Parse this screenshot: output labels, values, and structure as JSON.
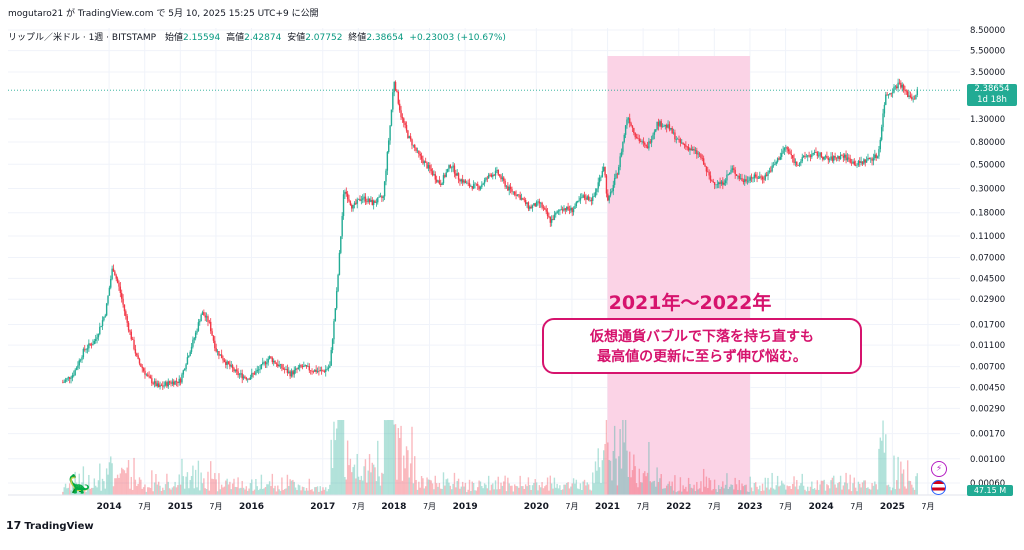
{
  "header": {
    "attribution": "mogutaro21 が TradingView.com で 5月 10, 2025 15:25 UTC+9 に公開",
    "symbol": "リップル／米ドル · 1週 · BITSTAMP",
    "open_label": "始値",
    "open": "2.15594",
    "high_label": "高値",
    "high": "2.42874",
    "low_label": "安値",
    "low": "2.07752",
    "close_label": "終値",
    "close": "2.38654",
    "change": "+0.23003 (+10.67%)"
  },
  "price_tag": {
    "price": "2.38654",
    "countdown": "1d 18h"
  },
  "volume_tag": "47.15 M",
  "logo": {
    "text": "TradingView",
    "mark": "17"
  },
  "annotation": {
    "title": "2021年〜2022年",
    "line1": "仮想通貨バブルで下落を持ち直すも",
    "line2": "最高値の更新に至らず伸び悩む。"
  },
  "colors": {
    "up": "#22ab94",
    "down": "#f23645",
    "highlight": "#fbd3e6",
    "accent": "#d6136d"
  },
  "chart_data": {
    "type": "candlestick",
    "scale": "log",
    "y_ticks": [
      "8.50000",
      "5.50000",
      "3.50000",
      "2.38654",
      "1.30000",
      "0.80000",
      "0.50000",
      "0.30000",
      "0.18000",
      "0.11000",
      "0.07000",
      "0.04500",
      "0.02900",
      "0.01700",
      "0.01100",
      "0.00700",
      "0.00450",
      "0.00290",
      "0.00170",
      "0.00100",
      "0.00060"
    ],
    "y_tick_values": [
      8.5,
      5.5,
      3.5,
      2.38654,
      1.3,
      0.8,
      0.5,
      0.3,
      0.18,
      0.11,
      0.07,
      0.045,
      0.029,
      0.017,
      0.011,
      0.007,
      0.0045,
      0.0029,
      0.0017,
      0.001,
      0.0006
    ],
    "x_ticks": [
      {
        "t": 2014.0,
        "label": "2014",
        "bold": true
      },
      {
        "t": 2014.5,
        "label": "7月",
        "bold": false
      },
      {
        "t": 2015.0,
        "label": "2015",
        "bold": true
      },
      {
        "t": 2015.5,
        "label": "7月",
        "bold": false
      },
      {
        "t": 2016.0,
        "label": "2016",
        "bold": true
      },
      {
        "t": 2017.0,
        "label": "2017",
        "bold": true
      },
      {
        "t": 2017.5,
        "label": "7月",
        "bold": false
      },
      {
        "t": 2018.0,
        "label": "2018",
        "bold": true
      },
      {
        "t": 2018.5,
        "label": "7月",
        "bold": false
      },
      {
        "t": 2019.0,
        "label": "2019",
        "bold": true
      },
      {
        "t": 2020.0,
        "label": "2020",
        "bold": true
      },
      {
        "t": 2020.5,
        "label": "7月",
        "bold": false
      },
      {
        "t": 2021.0,
        "label": "2021",
        "bold": true
      },
      {
        "t": 2021.5,
        "label": "7月",
        "bold": false
      },
      {
        "t": 2022.0,
        "label": "2022",
        "bold": true
      },
      {
        "t": 2022.5,
        "label": "7月",
        "bold": false
      },
      {
        "t": 2023.0,
        "label": "2023",
        "bold": true
      },
      {
        "t": 2023.5,
        "label": "7月",
        "bold": false
      },
      {
        "t": 2024.0,
        "label": "2024",
        "bold": true
      },
      {
        "t": 2024.5,
        "label": "7月",
        "bold": false
      },
      {
        "t": 2025.0,
        "label": "2025",
        "bold": true
      },
      {
        "t": 2025.5,
        "label": "7月",
        "bold": false
      }
    ],
    "highlight_range": [
      "2021-01",
      "2022-12"
    ],
    "price_path": [
      [
        2013.35,
        0.005
      ],
      [
        2013.5,
        0.006
      ],
      [
        2013.65,
        0.01
      ],
      [
        2013.8,
        0.012
      ],
      [
        2013.95,
        0.022
      ],
      [
        2014.05,
        0.058
      ],
      [
        2014.15,
        0.035
      ],
      [
        2014.25,
        0.018
      ],
      [
        2014.4,
        0.008
      ],
      [
        2014.55,
        0.0055
      ],
      [
        2014.7,
        0.0045
      ],
      [
        2014.85,
        0.005
      ],
      [
        2015.0,
        0.0052
      ],
      [
        2015.1,
        0.0085
      ],
      [
        2015.2,
        0.013
      ],
      [
        2015.3,
        0.022
      ],
      [
        2015.4,
        0.018
      ],
      [
        2015.5,
        0.01
      ],
      [
        2015.65,
        0.0075
      ],
      [
        2015.8,
        0.006
      ],
      [
        2015.95,
        0.0055
      ],
      [
        2016.1,
        0.0065
      ],
      [
        2016.25,
        0.0085
      ],
      [
        2016.4,
        0.007
      ],
      [
        2016.55,
        0.006
      ],
      [
        2016.7,
        0.007
      ],
      [
        2016.85,
        0.0065
      ],
      [
        2017.0,
        0.0063
      ],
      [
        2017.1,
        0.007
      ],
      [
        2017.2,
        0.035
      ],
      [
        2017.3,
        0.3
      ],
      [
        2017.42,
        0.2
      ],
      [
        2017.55,
        0.25
      ],
      [
        2017.7,
        0.22
      ],
      [
        2017.85,
        0.25
      ],
      [
        2017.95,
        1.2
      ],
      [
        2018.0,
        3.0
      ],
      [
        2018.1,
        1.4
      ],
      [
        2018.2,
        0.9
      ],
      [
        2018.35,
        0.6
      ],
      [
        2018.5,
        0.45
      ],
      [
        2018.65,
        0.33
      ],
      [
        2018.8,
        0.5
      ],
      [
        2018.9,
        0.38
      ],
      [
        2019.05,
        0.32
      ],
      [
        2019.2,
        0.31
      ],
      [
        2019.35,
        0.4
      ],
      [
        2019.45,
        0.42
      ],
      [
        2019.6,
        0.3
      ],
      [
        2019.75,
        0.26
      ],
      [
        2019.9,
        0.2
      ],
      [
        2020.05,
        0.22
      ],
      [
        2020.2,
        0.15
      ],
      [
        2020.35,
        0.2
      ],
      [
        2020.5,
        0.19
      ],
      [
        2020.65,
        0.25
      ],
      [
        2020.8,
        0.24
      ],
      [
        2020.95,
        0.5
      ],
      [
        2021.0,
        0.22
      ],
      [
        2021.15,
        0.45
      ],
      [
        2021.28,
        1.4
      ],
      [
        2021.4,
        0.9
      ],
      [
        2021.55,
        0.7
      ],
      [
        2021.7,
        1.2
      ],
      [
        2021.85,
        1.1
      ],
      [
        2022.0,
        0.8
      ],
      [
        2022.15,
        0.7
      ],
      [
        2022.3,
        0.6
      ],
      [
        2022.45,
        0.35
      ],
      [
        2022.6,
        0.33
      ],
      [
        2022.75,
        0.45
      ],
      [
        2022.9,
        0.35
      ],
      [
        2023.0,
        0.38
      ],
      [
        2023.2,
        0.38
      ],
      [
        2023.35,
        0.5
      ],
      [
        2023.5,
        0.72
      ],
      [
        2023.65,
        0.5
      ],
      [
        2023.8,
        0.6
      ],
      [
        2023.95,
        0.62
      ],
      [
        2024.1,
        0.55
      ],
      [
        2024.3,
        0.6
      ],
      [
        2024.5,
        0.5
      ],
      [
        2024.65,
        0.55
      ],
      [
        2024.8,
        0.6
      ],
      [
        2024.9,
        2.1
      ],
      [
        2025.0,
        2.4
      ],
      [
        2025.1,
        2.8
      ],
      [
        2025.2,
        2.2
      ],
      [
        2025.3,
        2.0
      ],
      [
        2025.36,
        2.38654
      ]
    ]
  }
}
